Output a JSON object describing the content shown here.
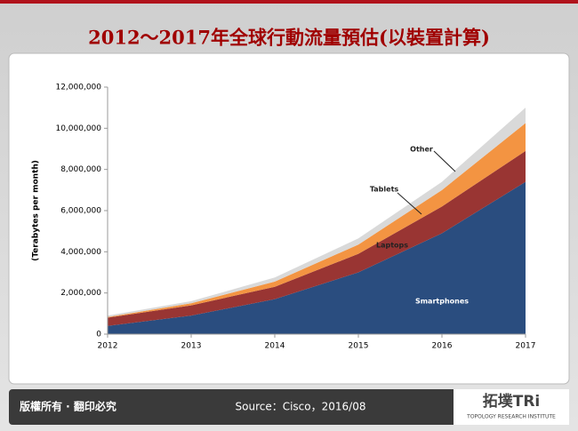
{
  "chart_data": {
    "type": "stacked-area",
    "title": "2012～2017年全球行動流量預估(以裝置計算)",
    "y_label": "(Terabytes per month)",
    "categories": [
      "2012",
      "2013",
      "2014",
      "2015",
      "2016",
      "2017"
    ],
    "series": [
      {
        "name": "Smartphones",
        "color": "#2a4d7f",
        "values": [
          400000,
          900000,
          1700000,
          3000000,
          4900000,
          7400000
        ]
      },
      {
        "name": "Laptops",
        "color": "#993533",
        "values": [
          400000,
          500000,
          600000,
          900000,
          1300000,
          1500000
        ]
      },
      {
        "name": "Tablets",
        "color": "#f39442",
        "values": [
          30000,
          100000,
          250000,
          450000,
          800000,
          1350000
        ]
      },
      {
        "name": "Other",
        "color": "#d9d9d9",
        "values": [
          70000,
          100000,
          200000,
          300000,
          400000,
          750000
        ]
      }
    ],
    "ylim": [
      0,
      12000000
    ],
    "yticks": [
      0,
      {
        "value": 2000000,
        "label": "2,000,000"
      },
      {
        "value": 4000000,
        "label": "4,000,000"
      },
      {
        "value": 6000000,
        "label": "6,000,000"
      },
      {
        "value": 8000000,
        "label": "8,000,000"
      },
      {
        "value": 10000000,
        "label": "10,000,000"
      },
      {
        "value": 12000000,
        "label": "12,000,000"
      }
    ],
    "grid": false
  },
  "footer": {
    "copyright": "版權所有 · 翻印必究",
    "source": "Source：Cisco，2016/08"
  },
  "logo": {
    "name": "拓墣TRi",
    "subtitle": "TOPOLOGY RESEARCH INSTITUTE"
  }
}
